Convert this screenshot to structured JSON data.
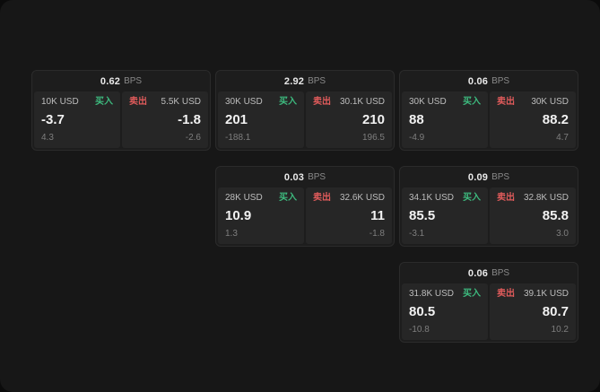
{
  "page": {
    "unit_label": "BPS"
  },
  "colors": {
    "buy_accent": "#3dba7e",
    "sell_accent": "#e05b5b",
    "surface": "#171717",
    "card": "#1d1d1d",
    "panel": "#262626"
  },
  "cards": [
    {
      "bps": "0.62",
      "buy": {
        "size": "10K USD",
        "action": "买入",
        "price": "-3.7",
        "change": "4.3"
      },
      "sell": {
        "action": "卖出",
        "size": "5.5K USD",
        "price": "-1.8",
        "change": "-2.6"
      }
    },
    {
      "bps": "2.92",
      "buy": {
        "size": "30K USD",
        "action": "买入",
        "price": "201",
        "change": "-188.1"
      },
      "sell": {
        "action": "卖出",
        "size": "30.1K USD",
        "price": "210",
        "change": "196.5"
      }
    },
    {
      "bps": "0.06",
      "buy": {
        "size": "30K USD",
        "action": "买入",
        "price": "88",
        "change": "-4.9"
      },
      "sell": {
        "action": "卖出",
        "size": "30K USD",
        "price": "88.2",
        "change": "4.7"
      }
    },
    {
      "bps": "0.03",
      "buy": {
        "size": "28K USD",
        "action": "买入",
        "price": "10.9",
        "change": "1.3"
      },
      "sell": {
        "action": "卖出",
        "size": "32.6K USD",
        "price": "11",
        "change": "-1.8"
      }
    },
    {
      "bps": "0.09",
      "buy": {
        "size": "34.1K USD",
        "action": "买入",
        "price": "85.5",
        "change": "-3.1"
      },
      "sell": {
        "action": "卖出",
        "size": "32.8K USD",
        "price": "85.8",
        "change": "3.0"
      }
    },
    {
      "bps": "0.06",
      "buy": {
        "size": "31.8K USD",
        "action": "买入",
        "price": "80.5",
        "change": "-10.8"
      },
      "sell": {
        "action": "卖出",
        "size": "39.1K USD",
        "price": "80.7",
        "change": "10.2"
      }
    }
  ]
}
